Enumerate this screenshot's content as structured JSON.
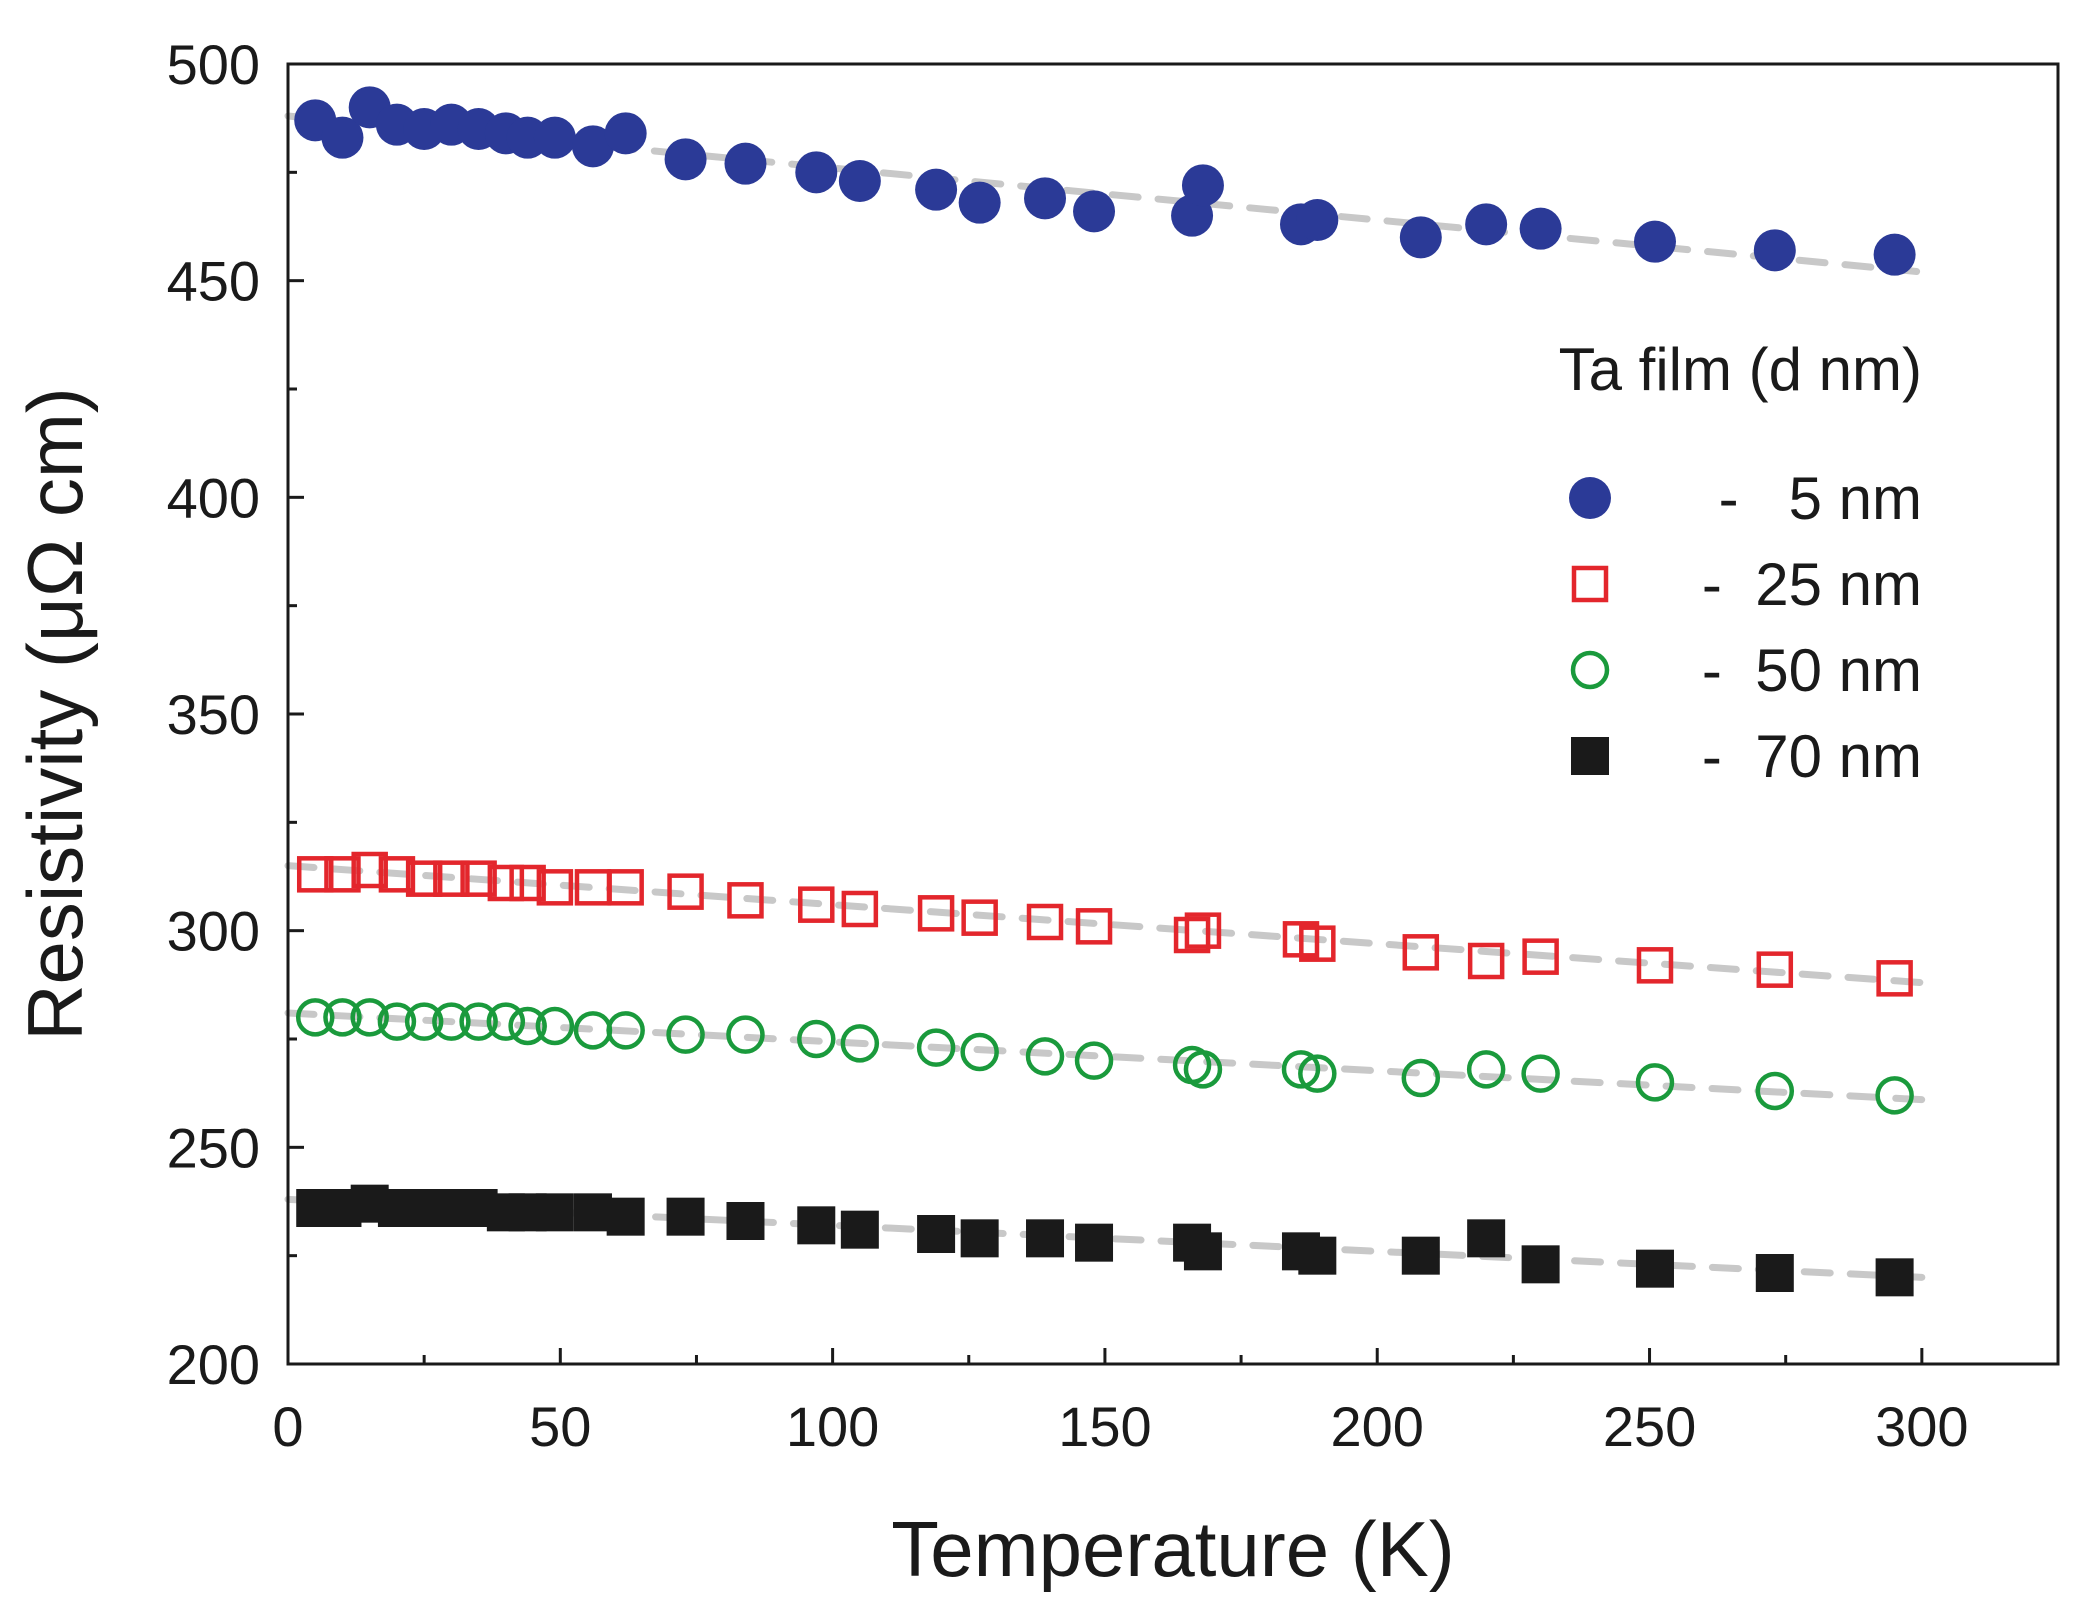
{
  "chart_data": {
    "type": "scatter",
    "xlabel": "Temperature (K)",
    "ylabel": "Resistivity (μΩ cm)",
    "xlim": [
      0,
      325
    ],
    "ylim": [
      200,
      500
    ],
    "xticks": [
      0,
      50,
      100,
      150,
      200,
      250,
      300
    ],
    "yticks": [
      200,
      250,
      300,
      350,
      400,
      450,
      500
    ],
    "xtick_labels": [
      "0",
      "50",
      "100",
      "150",
      "200",
      "250",
      "300"
    ],
    "ytick_labels": [
      "200",
      "250",
      "300",
      "350",
      "400",
      "450",
      "500"
    ],
    "legend_title": "Ta film (d nm)",
    "legend_position": "top-right",
    "fit_line_color": "#c8c8c8",
    "series": [
      {
        "name": "5 nm",
        "legend_label": "-   5 nm",
        "marker": "filled-circle",
        "color": "#2b3a97",
        "x": [
          5,
          10,
          15,
          20,
          25,
          30,
          35,
          40,
          44,
          49,
          56,
          62,
          73,
          84,
          97,
          105,
          119,
          127,
          139,
          148,
          166,
          168,
          186,
          189,
          208,
          220,
          230,
          251,
          273,
          295
        ],
        "y": [
          487,
          483,
          490,
          486,
          485,
          486,
          485,
          484,
          483,
          483,
          481,
          484,
          478,
          477,
          475,
          473,
          471,
          468,
          469,
          466,
          465,
          472,
          463,
          464,
          460,
          463,
          462,
          459,
          457,
          456
        ],
        "fit": [
          [
            0,
            488
          ],
          [
            300,
            452
          ]
        ]
      },
      {
        "name": "25 nm",
        "legend_label": "-  25 nm",
        "marker": "open-square",
        "color": "#e3262c",
        "x": [
          5,
          10,
          15,
          20,
          25,
          30,
          35,
          40,
          44,
          49,
          56,
          62,
          73,
          84,
          97,
          105,
          119,
          127,
          139,
          148,
          166,
          168,
          186,
          189,
          208,
          220,
          230,
          251,
          273,
          295
        ],
        "y": [
          313,
          313,
          314,
          313,
          312,
          312,
          312,
          311,
          311,
          310,
          310,
          310,
          309,
          307,
          306,
          305,
          304,
          303,
          302,
          301,
          299,
          300,
          298,
          297,
          295,
          293,
          294,
          292,
          291,
          289
        ],
        "fit": [
          [
            0,
            315
          ],
          [
            300,
            288
          ]
        ]
      },
      {
        "name": "50 nm",
        "legend_label": "-  50 nm",
        "marker": "open-circle",
        "color": "#1a9a3c",
        "x": [
          5,
          10,
          15,
          20,
          25,
          30,
          35,
          40,
          44,
          49,
          56,
          62,
          73,
          84,
          97,
          105,
          119,
          127,
          139,
          148,
          166,
          168,
          186,
          189,
          208,
          220,
          230,
          251,
          273,
          295
        ],
        "y": [
          280,
          280,
          280,
          279,
          279,
          279,
          279,
          279,
          278,
          278,
          277,
          277,
          276,
          276,
          275,
          274,
          273,
          272,
          271,
          270,
          269,
          268,
          268,
          267,
          266,
          268,
          267,
          265,
          263,
          262
        ],
        "fit": [
          [
            0,
            281
          ],
          [
            300,
            261
          ]
        ]
      },
      {
        "name": "70 nm",
        "legend_label": "-  70 nm",
        "marker": "filled-square",
        "color": "#1a1a1a",
        "x": [
          5,
          10,
          15,
          20,
          25,
          30,
          35,
          40,
          44,
          49,
          56,
          62,
          73,
          84,
          97,
          105,
          119,
          127,
          139,
          148,
          166,
          168,
          186,
          189,
          208,
          220,
          230,
          251,
          273,
          295
        ],
        "y": [
          236,
          236,
          237,
          236,
          236,
          236,
          236,
          235,
          235,
          235,
          235,
          234,
          234,
          233,
          232,
          231,
          230,
          229,
          229,
          228,
          228,
          226,
          226,
          225,
          225,
          229,
          223,
          222,
          221,
          220
        ],
        "fit": [
          [
            0,
            238
          ],
          [
            300,
            220
          ]
        ]
      }
    ]
  }
}
